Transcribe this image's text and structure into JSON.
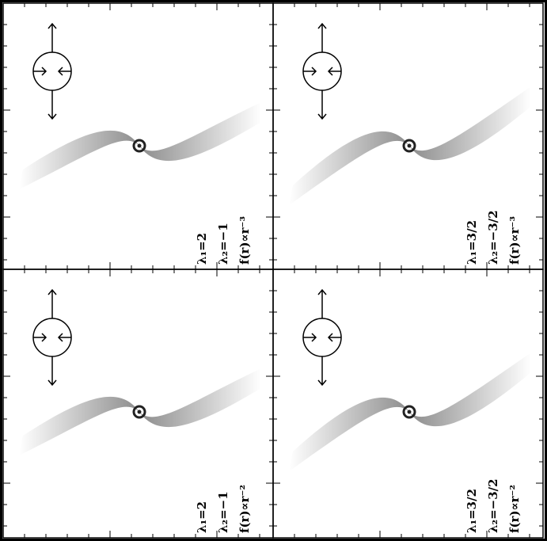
{
  "panels": [
    {
      "lines": [
        "λ₁=2",
        "λ₂=−1",
        "f(r)∝r⁻³"
      ]
    },
    {
      "lines": [
        "λ₁=3/2",
        "λ₂=−3/2",
        "f(r)∝r⁻³"
      ]
    },
    {
      "lines": [
        "λ₁=2",
        "λ₂=−1",
        "f(r)∝r⁻²"
      ]
    },
    {
      "lines": [
        "λ₁=3/2",
        "λ₂=−3/2",
        "f(r)∝r⁻²"
      ]
    }
  ]
}
